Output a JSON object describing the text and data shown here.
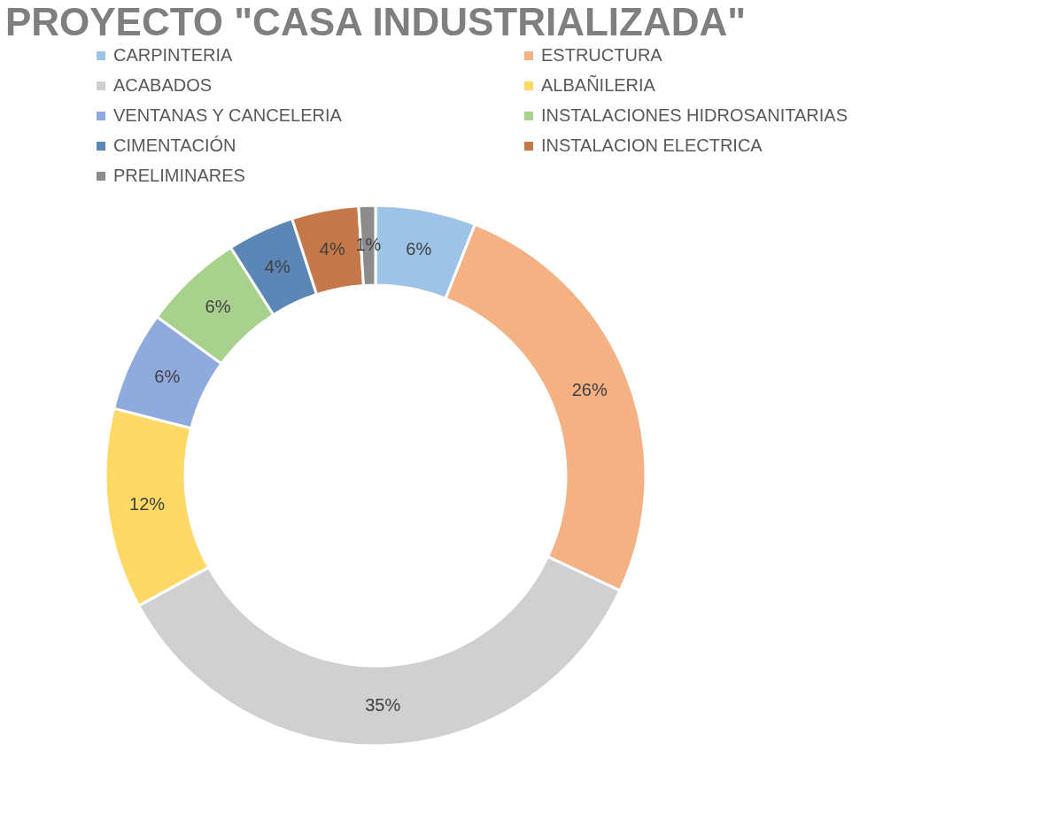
{
  "chart_data": {
    "type": "donut",
    "title": "PROYECTO \"CASA INDUSTRIALIZADA\"",
    "categories": [
      "CARPINTERIA",
      "ESTRUCTURA",
      "ACABADOS",
      "ALBAÑILERIA",
      "VENTANAS Y CANCELERIA",
      "INSTALACIONES HIDROSANITARIAS",
      "CIMENTACIÓN",
      "INSTALACION ELECTRICA",
      "PRELIMINARES"
    ],
    "values": [
      6,
      26,
      35,
      12,
      6,
      6,
      4,
      4,
      1
    ],
    "value_labels": [
      "6%",
      "26%",
      "35%",
      "12%",
      "6%",
      "6%",
      "4%",
      "4%",
      "1%"
    ],
    "colors": [
      "#9dc3e6",
      "#f4b183",
      "#d0d0d0",
      "#ffd966",
      "#8faadc",
      "#a9d18e",
      "#5b86b5",
      "#c5784a",
      "#8c8c8c"
    ],
    "legend": "top"
  }
}
